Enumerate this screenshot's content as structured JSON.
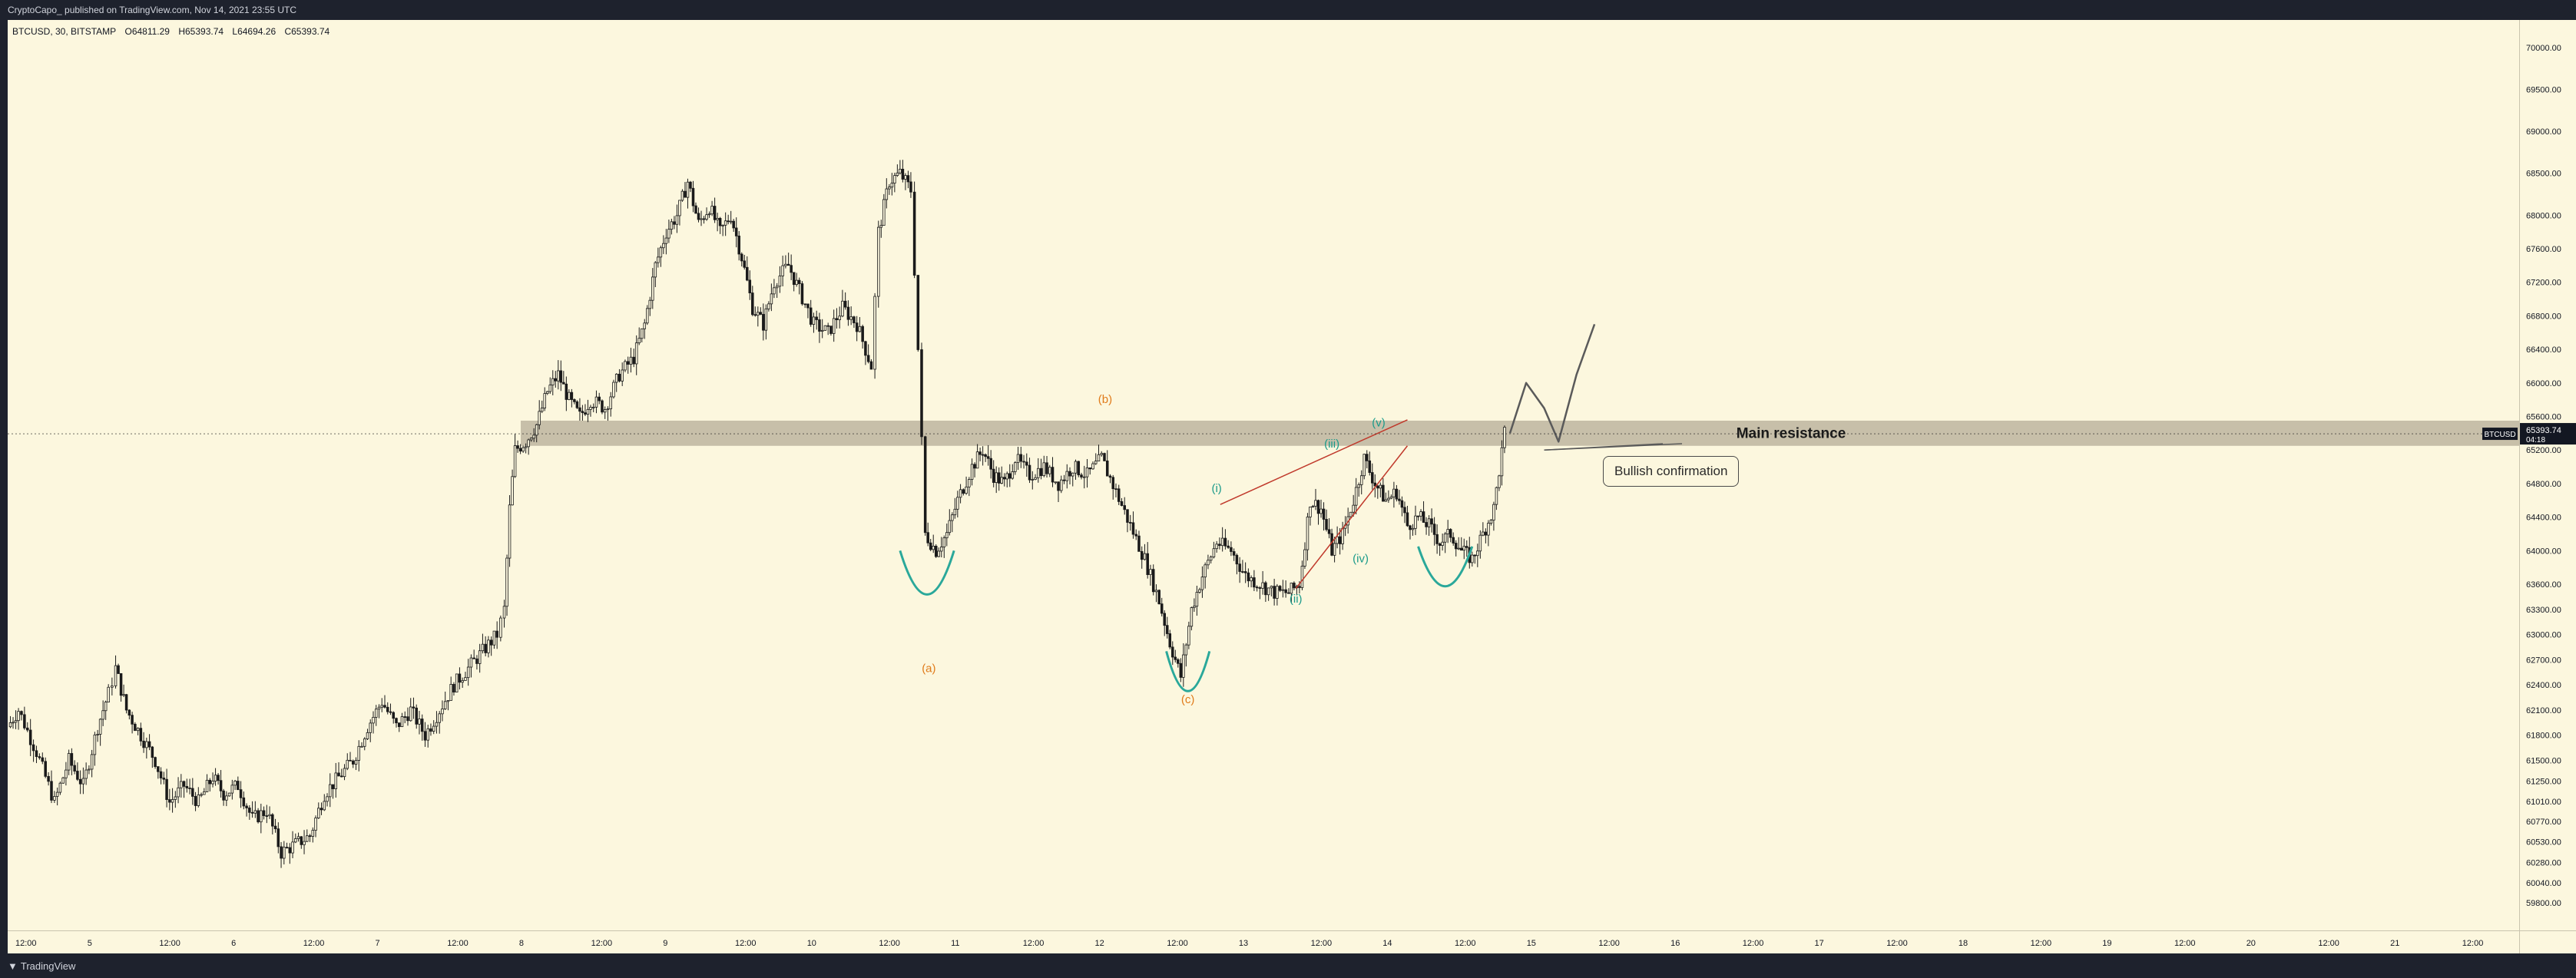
{
  "header": {
    "publish_text": "CryptoCapo_ published on TradingView.com, Nov 14, 2021 23:55 UTC"
  },
  "legend": {
    "symbol": "BTCUSD, 30, BITSTAMP",
    "open": "O64811.29",
    "high": "H65393.74",
    "low": "L64694.26",
    "close": "C65393.74"
  },
  "footer": {
    "brand": "TradingView"
  },
  "price_tag": {
    "symbol": "BTCUSD",
    "price": "65393.74",
    "countdown": "04:18"
  },
  "colors": {
    "background": "#fcf7de",
    "candles": "#1a1a1a",
    "resistance_zone": "#bdb5a0",
    "wave_primary": "#e07b1a",
    "wave_minor": "#1a9a8a",
    "cup_curve": "#2aa89a",
    "wedge": "#c0392b",
    "projection": "#5a5a5a"
  },
  "annotations": {
    "resistance_label": "Main resistance",
    "callout": "Bullish confirmation",
    "waves": {
      "a": "(a)",
      "b": "(b)",
      "c": "(c)",
      "i": "(i)",
      "ii": "(ii)",
      "iii": "(iii)",
      "iv": "(iv)",
      "v": "(v)"
    }
  },
  "chart_data": {
    "type": "candlestick",
    "symbol": "BTCUSD",
    "interval": "30",
    "exchange": "BITSTAMP",
    "ylim": [
      59600,
      70200
    ],
    "price_ticks": [
      "70000.00",
      "69500.00",
      "69000.00",
      "68500.00",
      "68000.00",
      "67600.00",
      "67200.00",
      "66800.00",
      "66400.00",
      "66000.00",
      "65600.00",
      "65200.00",
      "64800.00",
      "64400.00",
      "64000.00",
      "63600.00",
      "63300.00",
      "63000.00",
      "62700.00",
      "62400.00",
      "62100.00",
      "61800.00",
      "61500.00",
      "61250.00",
      "61010.00",
      "60770.00",
      "60530.00",
      "60280.00",
      "60040.00",
      "59800.00"
    ],
    "time_ticks": [
      "12:00",
      "5",
      "12:00",
      "6",
      "12:00",
      "7",
      "12:00",
      "8",
      "12:00",
      "9",
      "12:00",
      "10",
      "12:00",
      "11",
      "12:00",
      "12",
      "12:00",
      "13",
      "12:00",
      "14",
      "12:00",
      "15",
      "12:00",
      "16",
      "12:00",
      "17",
      "12:00",
      "18",
      "12:00",
      "19",
      "12:00",
      "20",
      "12:00",
      "21",
      "12:00"
    ],
    "resistance_zone": [
      65250,
      65550
    ],
    "last_price": 65393.74,
    "price_path": [
      [
        0,
        61900
      ],
      [
        0.3,
        62100
      ],
      [
        0.8,
        61600
      ],
      [
        1.3,
        61000
      ],
      [
        1.7,
        61500
      ],
      [
        2.1,
        61200
      ],
      [
        2.5,
        61900
      ],
      [
        2.8,
        62300
      ],
      [
        3.0,
        62600
      ],
      [
        3.3,
        62100
      ],
      [
        3.7,
        61800
      ],
      [
        4.1,
        61500
      ],
      [
        4.5,
        61000
      ],
      [
        4.9,
        61200
      ],
      [
        5.3,
        61000
      ],
      [
        5.7,
        61300
      ],
      [
        6.0,
        61100
      ],
      [
        6.4,
        61200
      ],
      [
        6.8,
        60800
      ],
      [
        7.2,
        60900
      ],
      [
        7.6,
        60400
      ],
      [
        8.0,
        60500
      ],
      [
        8.4,
        60600
      ],
      [
        8.8,
        61100
      ],
      [
        9.2,
        61300
      ],
      [
        9.6,
        61500
      ],
      [
        10.0,
        61900
      ],
      [
        10.4,
        62200
      ],
      [
        10.8,
        61900
      ],
      [
        11.2,
        62100
      ],
      [
        11.6,
        61800
      ],
      [
        12.0,
        62100
      ],
      [
        12.4,
        62400
      ],
      [
        12.8,
        62600
      ],
      [
        13.2,
        62800
      ],
      [
        13.6,
        63000
      ],
      [
        13.8,
        63300
      ],
      [
        13.95,
        64500
      ],
      [
        14.1,
        65200
      ],
      [
        14.4,
        65300
      ],
      [
        14.7,
        65500
      ],
      [
        15.0,
        65900
      ],
      [
        15.3,
        66100
      ],
      [
        15.6,
        65800
      ],
      [
        15.9,
        65600
      ],
      [
        16.2,
        65800
      ],
      [
        16.6,
        65700
      ],
      [
        17.0,
        66100
      ],
      [
        17.4,
        66300
      ],
      [
        17.7,
        66700
      ],
      [
        18.0,
        67400
      ],
      [
        18.3,
        67800
      ],
      [
        18.6,
        68000
      ],
      [
        18.9,
        68400
      ],
      [
        19.2,
        67900
      ],
      [
        19.5,
        68100
      ],
      [
        19.8,
        67800
      ],
      [
        20.1,
        68000
      ],
      [
        20.4,
        67500
      ],
      [
        20.7,
        66900
      ],
      [
        21.0,
        66700
      ],
      [
        21.3,
        67200
      ],
      [
        21.7,
        67400
      ],
      [
        22.0,
        67100
      ],
      [
        22.4,
        66700
      ],
      [
        22.8,
        66600
      ],
      [
        23.2,
        66900
      ],
      [
        23.6,
        66700
      ],
      [
        24.0,
        66200
      ],
      [
        24.2,
        67800
      ],
      [
        24.5,
        68400
      ],
      [
        24.8,
        68500
      ],
      [
        25.1,
        68300
      ],
      [
        25.3,
        66400
      ],
      [
        25.5,
        64200
      ],
      [
        25.8,
        64000
      ],
      [
        26.1,
        64200
      ],
      [
        26.4,
        64600
      ],
      [
        26.8,
        65000
      ],
      [
        27.1,
        65200
      ],
      [
        27.4,
        64900
      ],
      [
        27.7,
        64800
      ],
      [
        28.0,
        65100
      ],
      [
        28.4,
        64900
      ],
      [
        28.8,
        65000
      ],
      [
        29.2,
        64800
      ],
      [
        29.6,
        65000
      ],
      [
        30.0,
        64900
      ],
      [
        30.4,
        65100
      ],
      [
        30.8,
        64700
      ],
      [
        31.2,
        64300
      ],
      [
        31.6,
        63900
      ],
      [
        32.0,
        63400
      ],
      [
        32.3,
        62900
      ],
      [
        32.6,
        62500
      ],
      [
        32.9,
        63300
      ],
      [
        33.2,
        63700
      ],
      [
        33.6,
        64100
      ],
      [
        34.0,
        64000
      ],
      [
        34.4,
        63700
      ],
      [
        34.8,
        63600
      ],
      [
        35.2,
        63500
      ],
      [
        35.6,
        63500
      ],
      [
        35.9,
        63600
      ],
      [
        36.2,
        64600
      ],
      [
        36.5,
        64500
      ],
      [
        36.8,
        64000
      ],
      [
        37.1,
        64200
      ],
      [
        37.4,
        64600
      ],
      [
        37.7,
        65100
      ],
      [
        38.0,
        64800
      ],
      [
        38.3,
        64600
      ],
      [
        38.6,
        64700
      ],
      [
        38.9,
        64300
      ],
      [
        39.2,
        64400
      ],
      [
        39.5,
        64300
      ],
      [
        39.8,
        64100
      ],
      [
        40.1,
        64200
      ],
      [
        40.4,
        64000
      ],
      [
        40.7,
        63900
      ],
      [
        41.0,
        64200
      ],
      [
        41.3,
        64500
      ],
      [
        41.6,
        65400
      ]
    ],
    "projection_path": [
      [
        41.75,
        65400
      ],
      [
        42.2,
        66000
      ],
      [
        42.7,
        65700
      ],
      [
        43.1,
        65300
      ],
      [
        43.6,
        66100
      ],
      [
        44.1,
        66700
      ]
    ],
    "wave_labels": [
      {
        "key": "a",
        "x": 25.6,
        "y": 62550,
        "color": "primary"
      },
      {
        "key": "b",
        "x": 30.5,
        "y": 65760,
        "color": "primary"
      },
      {
        "key": "c",
        "x": 32.8,
        "y": 62180,
        "color": "primary"
      },
      {
        "key": "i",
        "x": 33.6,
        "y": 64700,
        "color": "minor"
      },
      {
        "key": "ii",
        "x": 35.8,
        "y": 63380,
        "color": "minor"
      },
      {
        "key": "iii",
        "x": 36.8,
        "y": 65230,
        "color": "minor"
      },
      {
        "key": "iv",
        "x": 37.6,
        "y": 63860,
        "color": "minor"
      },
      {
        "key": "v",
        "x": 38.1,
        "y": 65480,
        "color": "minor"
      }
    ]
  }
}
